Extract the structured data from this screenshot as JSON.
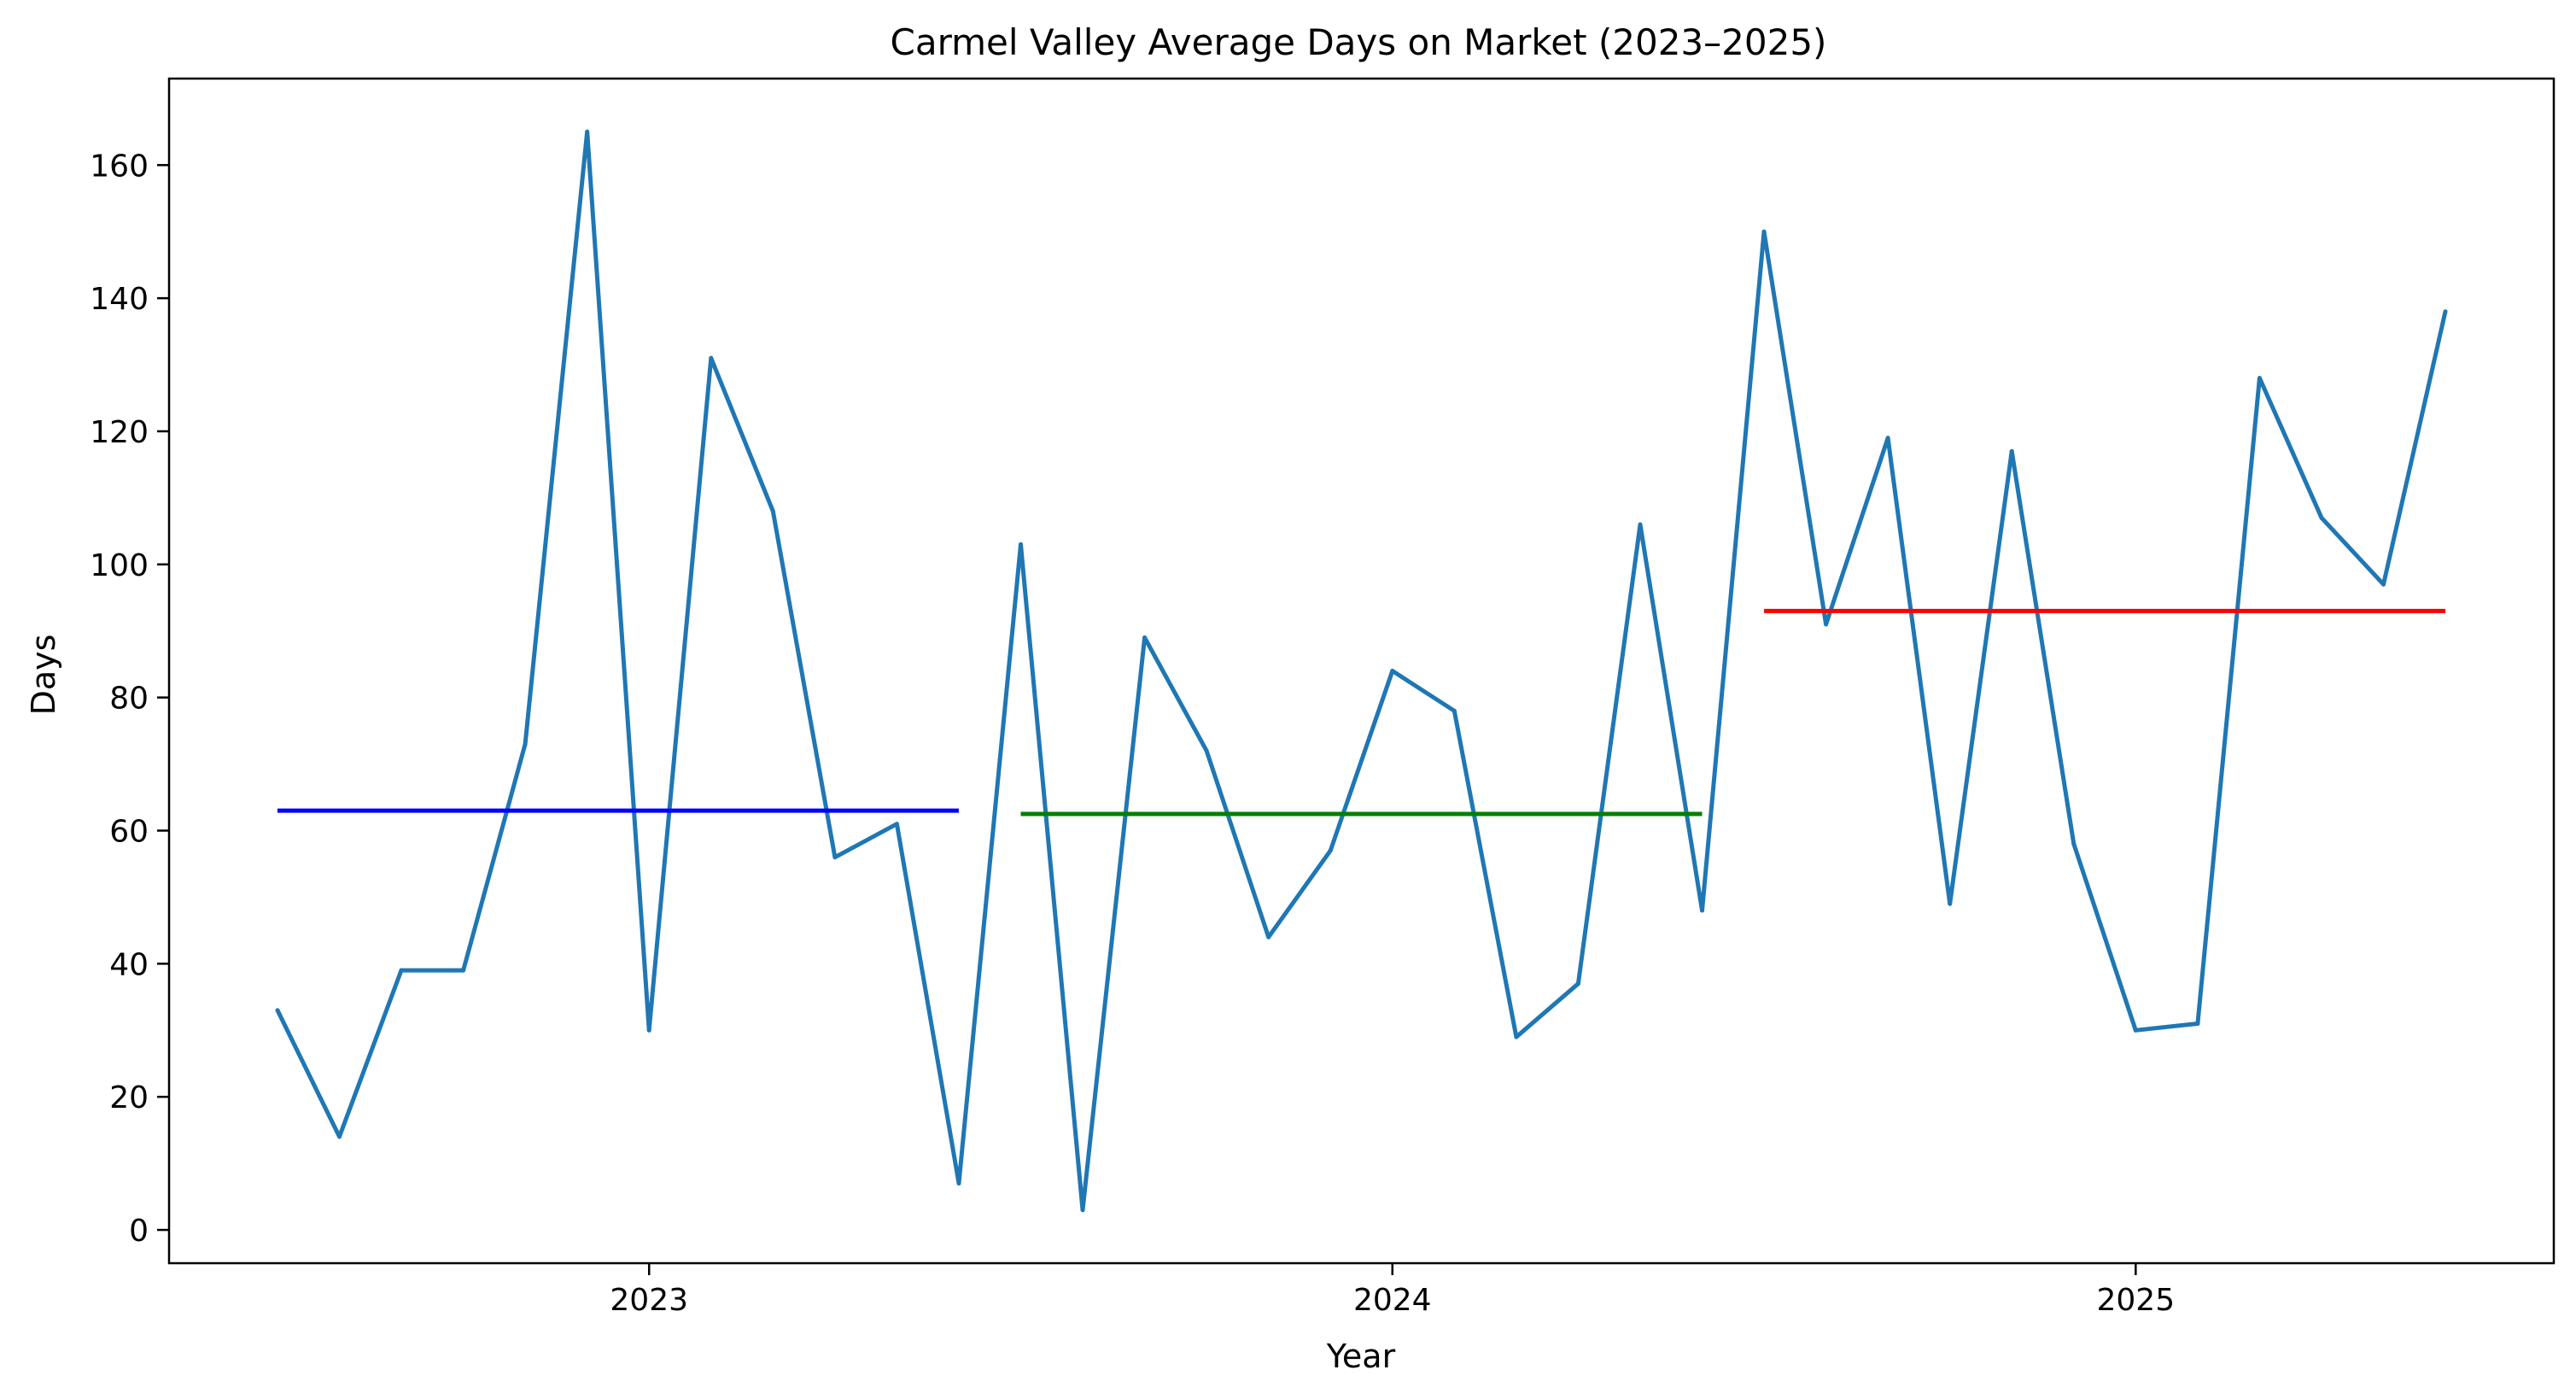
{
  "chart_data": {
    "type": "line",
    "title": "Carmel Valley Average Days on Market (2023–2025)",
    "xlabel": "Year",
    "ylabel": "Days",
    "x_axis_type": "date",
    "x": [
      "2022-07",
      "2022-08",
      "2022-09",
      "2022-10",
      "2022-11",
      "2022-12",
      "2023-01",
      "2023-02",
      "2023-03",
      "2023-04",
      "2023-05",
      "2023-06",
      "2023-07",
      "2023-08",
      "2023-09",
      "2023-10",
      "2023-11",
      "2023-12",
      "2024-01",
      "2024-02",
      "2024-03",
      "2024-04",
      "2024-05",
      "2024-06",
      "2024-07",
      "2024-08",
      "2024-09",
      "2024-10",
      "2024-11",
      "2024-12",
      "2025-01",
      "2025-02",
      "2025-03",
      "2025-04",
      "2025-05",
      "2025-06"
    ],
    "ylim": [
      -5,
      173
    ],
    "yticks": [
      0,
      20,
      40,
      60,
      80,
      100,
      120,
      140,
      160
    ],
    "xticks": [
      {
        "date": "2023-01",
        "label": "2023"
      },
      {
        "date": "2024-01",
        "label": "2024"
      },
      {
        "date": "2025-01",
        "label": "2025"
      }
    ],
    "grid": false,
    "series": [
      {
        "color": "#1f77b4",
        "values": [
          33,
          14,
          39,
          39,
          73,
          165,
          30,
          131,
          108,
          56,
          61,
          7,
          103,
          3,
          89,
          72,
          44,
          57,
          84,
          78,
          29,
          37,
          106,
          48,
          150,
          91,
          119,
          49,
          117,
          58,
          30,
          31,
          128,
          107,
          97,
          138
        ]
      }
    ],
    "reference_lines": [
      {
        "color": "#0000ff",
        "y": 63,
        "x_start": "2022-07",
        "x_end": "2023-06"
      },
      {
        "color": "#008000",
        "y": 62.5,
        "x_start": "2023-07",
        "x_end": "2024-06"
      },
      {
        "color": "#ff0000",
        "y": 93,
        "x_start": "2024-07",
        "x_end": "2025-06"
      }
    ]
  }
}
